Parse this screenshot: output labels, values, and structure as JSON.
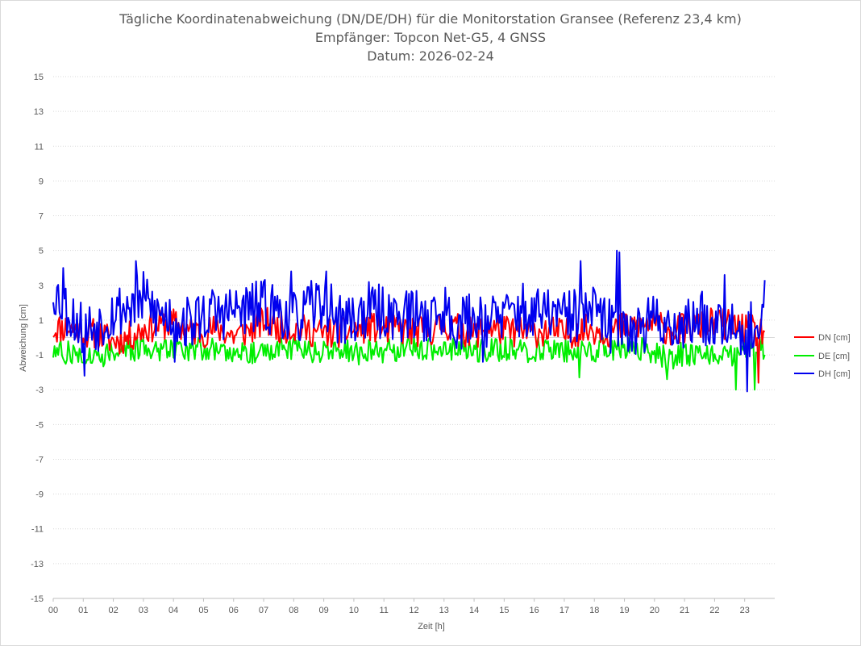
{
  "chart_data": {
    "type": "line",
    "title_lines": [
      "Tägliche Koordinatenabweichung (DN/DE/DH) für die Monitorstation Gransee (Referenz 23,4 km)",
      "Empfänger: Topcon Net-G5, 4 GNSS",
      "Datum: 2026-02-24"
    ],
    "xlabel": "Zeit [h]",
    "ylabel": "Abweichung [cm]",
    "x_ticks": [
      "00",
      "01",
      "02",
      "03",
      "04",
      "05",
      "06",
      "07",
      "08",
      "09",
      "10",
      "11",
      "12",
      "13",
      "14",
      "15",
      "16",
      "17",
      "18",
      "19",
      "20",
      "21",
      "22",
      "23"
    ],
    "y_ticks": [
      15,
      13,
      11,
      9,
      7,
      5,
      3,
      1,
      -1,
      -3,
      -5,
      -7,
      -9,
      -11,
      -13,
      -15
    ],
    "ylim": [
      -15,
      15
    ],
    "xlim": [
      0,
      24
    ],
    "grid": "horizontal dotted",
    "legend_position": "right",
    "x_anchor_hours": [
      0,
      0.5,
      1,
      1.5,
      2,
      2.5,
      3,
      3.5,
      4,
      4.5,
      5,
      5.5,
      6,
      6.5,
      7,
      7.5,
      8,
      8.5,
      9,
      9.5,
      10,
      10.5,
      11,
      11.5,
      12,
      12.5,
      13,
      13.5,
      14,
      14.5,
      15,
      15.5,
      16,
      16.5,
      17,
      17.5,
      18,
      18.5,
      19,
      19.5,
      20,
      20.5,
      21,
      21.5,
      22,
      22.5,
      23,
      23.5,
      23.7
    ],
    "series": [
      {
        "name": "DN [cm]",
        "color": "#ff0000",
        "values": [
          0.5,
          0.6,
          0.3,
          0.2,
          -0.2,
          0.0,
          0.5,
          0.7,
          0.8,
          0.4,
          0.3,
          0.5,
          0.1,
          0.4,
          0.9,
          0.6,
          0.5,
          0.4,
          0.2,
          0.3,
          0.4,
          0.6,
          0.5,
          0.5,
          0.3,
          0.4,
          0.7,
          0.5,
          0.2,
          0.6,
          0.4,
          0.3,
          0.3,
          0.4,
          0.2,
          0.4,
          0.5,
          0.3,
          0.6,
          0.7,
          0.8,
          0.4,
          0.5,
          0.6,
          0.9,
          0.7,
          0.5,
          0.3,
          0.4
        ],
        "amplitude": 0.9,
        "spikes": [
          [
            23.45,
            -2.6
          ]
        ]
      },
      {
        "name": "DE [cm]",
        "color": "#00ee00",
        "values": [
          -0.8,
          -0.9,
          -1.0,
          -1.1,
          -0.7,
          -0.8,
          -0.6,
          -0.7,
          -0.5,
          -0.7,
          -0.6,
          -0.8,
          -0.7,
          -0.8,
          -0.9,
          -0.6,
          -0.6,
          -0.8,
          -0.9,
          -0.7,
          -0.9,
          -0.8,
          -0.8,
          -0.7,
          -0.6,
          -0.7,
          -0.9,
          -0.6,
          -0.7,
          -0.8,
          -0.6,
          -0.8,
          -0.7,
          -0.6,
          -0.8,
          -0.7,
          -0.8,
          -0.6,
          -0.6,
          -0.7,
          -0.8,
          -1.2,
          -0.9,
          -1.1,
          -0.8,
          -1.0,
          -0.6,
          -0.5,
          -0.6
        ],
        "amplitude": 0.7,
        "spikes": [
          [
            17.5,
            -2.3
          ],
          [
            20.4,
            -2.4
          ],
          [
            22.7,
            -3.0
          ],
          [
            23.35,
            -3.0
          ]
        ]
      },
      {
        "name": "DH [cm]",
        "color": "#0000ee",
        "values": [
          2.8,
          1.5,
          0.5,
          0.8,
          1.5,
          1.8,
          2.2,
          1.3,
          1.2,
          0.8,
          1.3,
          1.4,
          1.5,
          1.6,
          1.8,
          1.6,
          1.0,
          1.6,
          2.2,
          1.0,
          1.1,
          1.6,
          1.4,
          1.3,
          1.3,
          1.2,
          1.5,
          0.8,
          1.2,
          1.0,
          1.2,
          1.6,
          1.2,
          1.5,
          1.1,
          1.3,
          1.5,
          0.6,
          0.9,
          0.4,
          1.0,
          0.8,
          0.6,
          1.2,
          0.9,
          1.3,
          0.3,
          0.7,
          1.2
        ],
        "amplitude": 1.6,
        "spikes": [
          [
            0.35,
            4.0
          ],
          [
            1.05,
            -2.2
          ],
          [
            2.75,
            4.4
          ],
          [
            4.05,
            -1.4
          ],
          [
            7.9,
            3.8
          ],
          [
            9.1,
            3.8
          ],
          [
            14.3,
            -1.4
          ],
          [
            17.55,
            4.4
          ],
          [
            18.75,
            5.0
          ],
          [
            18.85,
            4.9
          ],
          [
            22.35,
            3.6
          ],
          [
            23.1,
            -3.1
          ],
          [
            23.65,
            3.3
          ]
        ]
      }
    ]
  }
}
